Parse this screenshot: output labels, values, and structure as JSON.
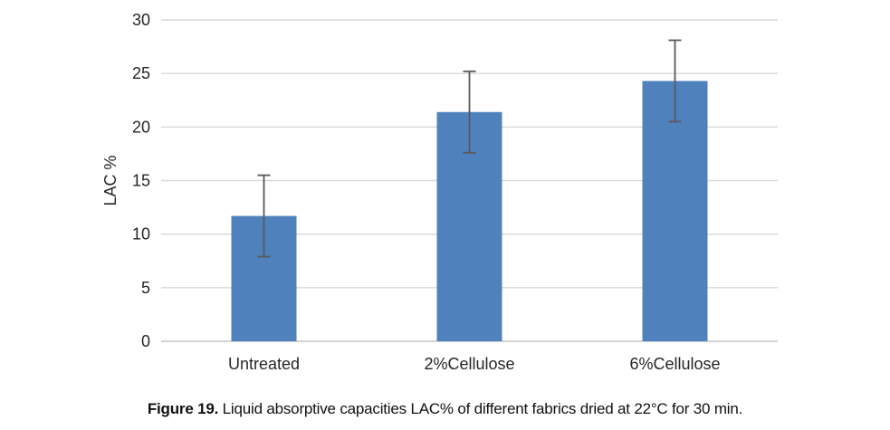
{
  "figure": {
    "caption_prefix": "Figure 19.",
    "caption_text": " Liquid absorptive capacities LAC% of different fabrics dried at 22°C for 30 min."
  },
  "chart_data": {
    "type": "bar",
    "title": "",
    "categories": [
      "Untreated",
      "2%Cellulose",
      "6%Cellulose"
    ],
    "values": [
      11.7,
      21.4,
      24.3
    ],
    "error_bars": {
      "plus": [
        3.8,
        3.8,
        3.8
      ],
      "minus": [
        3.8,
        3.8,
        3.8
      ]
    },
    "xlabel": "",
    "ylabel": "LAC %",
    "ylim": [
      0,
      30
    ],
    "yticks": [
      0,
      5,
      10,
      15,
      20,
      25,
      30
    ],
    "grid": "horizontal",
    "legend": "none",
    "colors": {
      "bar": "#4F81BD",
      "error_bar": "#595959",
      "gridline": "#D9D9D9",
      "axis_line": "#C6C6C6",
      "tick_label": "#262626"
    }
  }
}
